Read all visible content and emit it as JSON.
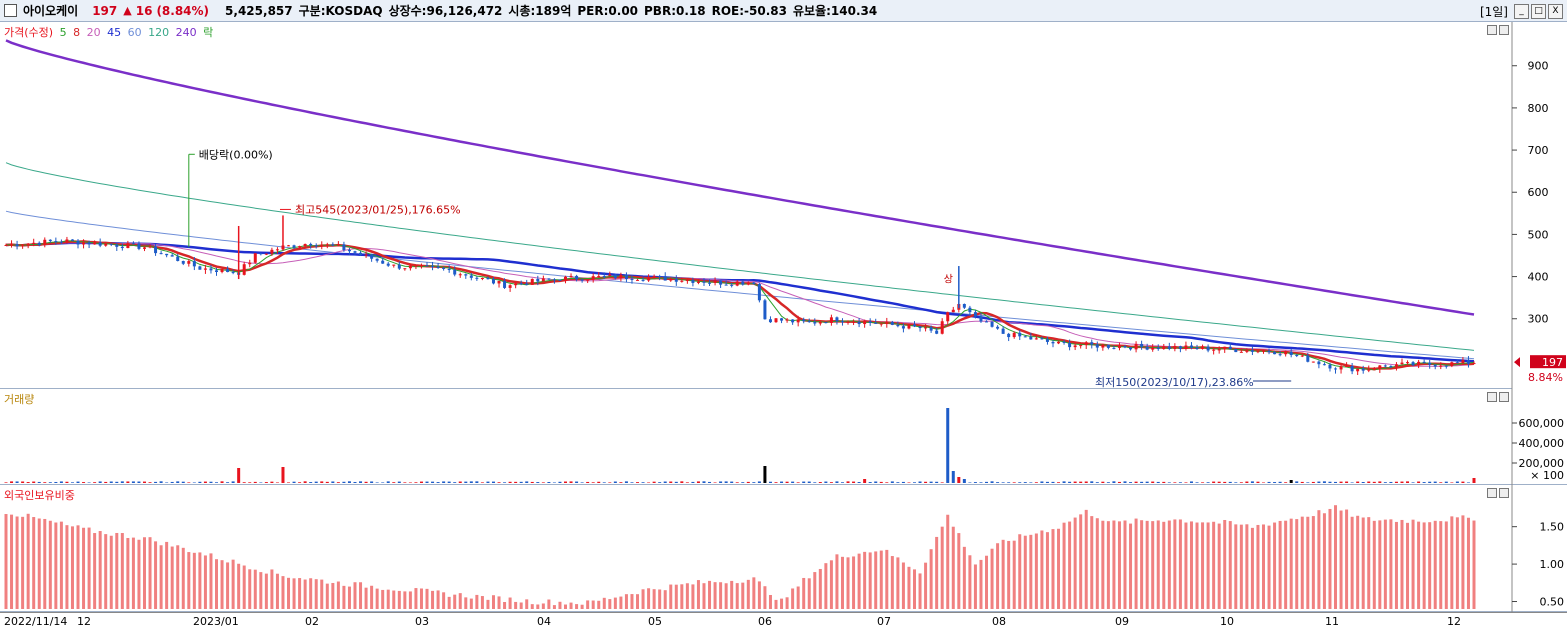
{
  "header": {
    "name": "아이오케이",
    "price": "197",
    "arrow": "▲",
    "change": "16",
    "pct": "(8.84%)",
    "volume": "5,425,857",
    "market": "구분:KOSDAQ",
    "shares": "상장수:96,126,472",
    "mcap": "시총:189억",
    "per": "PER:0.00",
    "pbr": "PBR:0.18",
    "roe": "ROE:-50.83",
    "retention": "유보율:140.34",
    "period": "[1일]",
    "min_btn": "_",
    "max_btn": "□",
    "close_btn": "X"
  },
  "price_pane": {
    "legend": {
      "price": "가격(수정)",
      "ma5": "5",
      "ma8": "8",
      "ma20": "20",
      "ma45": "45",
      "ma60": "60",
      "ma120": "120",
      "ma240": "240",
      "ex": "락"
    },
    "y_ticks": [
      "900",
      "800",
      "700",
      "600",
      "500",
      "400",
      "300"
    ],
    "current_price_tag": "197",
    "current_pct_tag": "8.84%",
    "dividend_label": "배당락(0.00%)",
    "high_label": "최고545(2023/01/25),176.65%",
    "low_label": "최저150(2023/10/17),23.86%",
    "sang_label": "상"
  },
  "volume_pane": {
    "legend": "거래량",
    "y_ticks": [
      "600,000",
      "400,000",
      "200,000"
    ],
    "unit": "× 100"
  },
  "foreign_pane": {
    "legend": "외국인보유비중",
    "y_ticks": [
      "1.50",
      "1.00",
      "0.50"
    ]
  },
  "x_axis": {
    "labels": [
      "2022/11/14",
      "12",
      "2023/01",
      "02",
      "03",
      "04",
      "05",
      "06",
      "07",
      "08",
      "09",
      "10",
      "11",
      "12"
    ]
  },
  "colors": {
    "up": "#e8141e",
    "down": "#1e5cc8",
    "ma5": "#2ca02c",
    "ma8": "#d62728",
    "ma20": "#c65fb8",
    "ma45": "#1f2fd0",
    "ma60": "#6f8fd8",
    "ma120": "#3aa88a",
    "ma240": "#7a2fc8",
    "foreign": "#f08080"
  }
}
